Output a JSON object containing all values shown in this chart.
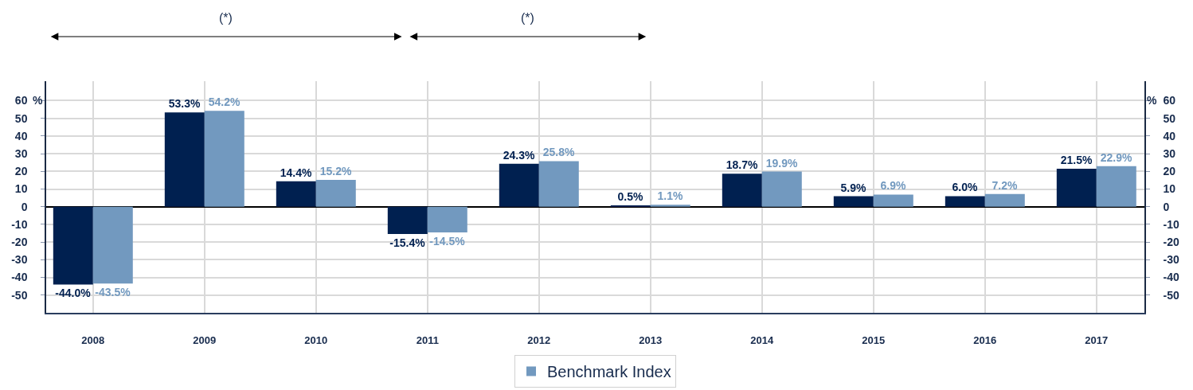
{
  "chart_data": {
    "type": "bar",
    "categories": [
      "2008",
      "2009",
      "2010",
      "2011",
      "2012",
      "2013",
      "2014",
      "2015",
      "2016",
      "2017"
    ],
    "series": [
      {
        "color": "#002050",
        "values": [
          -44.0,
          53.3,
          14.4,
          -15.4,
          24.3,
          0.5,
          18.7,
          5.9,
          6.0,
          21.5
        ],
        "value_labels": [
          "-44.0%",
          "53.3%",
          "14.4%",
          "-15.4%",
          "24.3%",
          "0.5%",
          "18.7%",
          "5.9%",
          "6.0%",
          "21.5%"
        ]
      },
      {
        "name": "Benchmark Index",
        "color": "#7299bf",
        "values": [
          -43.5,
          54.2,
          15.2,
          -14.5,
          25.8,
          1.1,
          19.9,
          6.9,
          7.2,
          22.9
        ],
        "value_labels": [
          "-43.5%",
          "54.2%",
          "15.2%",
          "-14.5%",
          "25.8%",
          "1.1%",
          "19.9%",
          "6.9%",
          "7.2%",
          "22.9%"
        ]
      }
    ],
    "ylabel": "%",
    "y2label": "%",
    "ylim": [
      -60,
      71
    ],
    "yticks": [
      -50,
      -40,
      -30,
      -20,
      -10,
      0,
      10,
      20,
      30,
      40,
      50,
      60
    ],
    "y2lim": [
      -60,
      71
    ],
    "y2ticks": [
      -50,
      -40,
      -30,
      -20,
      -10,
      0,
      10,
      20,
      30,
      40,
      50,
      60
    ],
    "grid": true,
    "legend": "bottom",
    "annotations": [
      "(*)",
      "(*)"
    ]
  }
}
